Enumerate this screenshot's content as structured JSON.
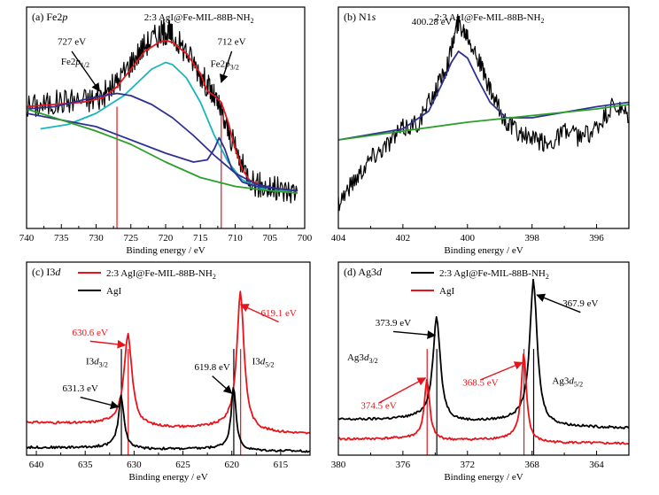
{
  "chart_data": [
    {
      "id": "a",
      "type": "line",
      "panel_label": "(a) Fe2p",
      "sample_label": "2:3 AgI@Fe-MIL-88B-NH2",
      "xlabel": "Binding energy / eV",
      "xlim": [
        740,
        700
      ],
      "xticks": [
        740,
        735,
        730,
        725,
        720,
        715,
        710,
        705,
        700
      ],
      "ylim": [
        0,
        1
      ],
      "y_tick_labels": false,
      "series": [
        {
          "role": "raw",
          "color": "#000000",
          "x": [
            740,
            737,
            734,
            731,
            729,
            727,
            725,
            723,
            721,
            720,
            719,
            717,
            715,
            713.5,
            712.5,
            711,
            709,
            707,
            705,
            703,
            701
          ],
          "y": [
            0.55,
            0.56,
            0.58,
            0.58,
            0.6,
            0.66,
            0.75,
            0.83,
            0.88,
            0.89,
            0.87,
            0.8,
            0.7,
            0.62,
            0.56,
            0.44,
            0.28,
            0.2,
            0.18,
            0.17,
            0.17
          ]
        },
        {
          "role": "envelope",
          "color": "#e8141b",
          "x": [
            740,
            736,
            732,
            729,
            727,
            725,
            723,
            721,
            720,
            719,
            717,
            715,
            714,
            713,
            712,
            711,
            710,
            709,
            708,
            706,
            704,
            701
          ],
          "y": [
            0.55,
            0.56,
            0.57,
            0.59,
            0.64,
            0.72,
            0.8,
            0.84,
            0.85,
            0.84,
            0.79,
            0.7,
            0.62,
            0.6,
            0.57,
            0.48,
            0.36,
            0.27,
            0.22,
            0.19,
            0.18,
            0.17
          ]
        },
        {
          "role": "component",
          "color": "#19b5bf",
          "x": [
            738,
            734,
            730,
            728,
            726,
            724,
            722,
            720,
            719,
            717,
            715,
            713,
            711,
            709,
            707,
            705,
            702
          ],
          "y": [
            0.45,
            0.47,
            0.52,
            0.56,
            0.6,
            0.66,
            0.72,
            0.75,
            0.74,
            0.68,
            0.57,
            0.42,
            0.3,
            0.22,
            0.19,
            0.17,
            0.17
          ]
        },
        {
          "role": "component",
          "color": "#2e3192",
          "x": [
            740,
            736,
            732,
            729,
            727,
            725,
            722,
            719,
            716,
            713,
            710,
            707,
            704,
            701
          ],
          "y": [
            0.54,
            0.55,
            0.58,
            0.6,
            0.61,
            0.6,
            0.56,
            0.5,
            0.42,
            0.33,
            0.25,
            0.2,
            0.18,
            0.17
          ]
        },
        {
          "role": "component",
          "color": "#2e3192",
          "x": [
            740,
            730,
            720,
            716,
            714,
            713,
            712.3,
            711.5,
            710.5,
            709,
            707,
            701
          ],
          "y": [
            0.52,
            0.46,
            0.34,
            0.3,
            0.31,
            0.36,
            0.41,
            0.36,
            0.27,
            0.21,
            0.19,
            0.17
          ]
        },
        {
          "role": "background",
          "color": "#2aa02a",
          "x": [
            740,
            735,
            730,
            725,
            720,
            715,
            710,
            705,
            701
          ],
          "y": [
            0.54,
            0.49,
            0.44,
            0.38,
            0.3,
            0.23,
            0.19,
            0.17,
            0.16
          ]
        }
      ],
      "noise_on_series": 0,
      "marker_lines": [
        {
          "x": 727,
          "color": "#e8141b"
        },
        {
          "x": 712,
          "color": "#e8141b"
        }
      ],
      "annotations": [
        {
          "text": "727 eV",
          "x": 733.5,
          "y": 0.83,
          "color": "#000000"
        },
        {
          "text": "712 eV",
          "x": 710.5,
          "y": 0.83,
          "color": "#000000"
        }
      ],
      "labels": [
        {
          "main": "Fe2p",
          "sub": "1/2",
          "x": 733.0,
          "y": 0.74
        },
        {
          "main": "Fe2p",
          "sub": "3/2",
          "x": 711.5,
          "y": 0.73
        }
      ]
    },
    {
      "id": "b",
      "type": "line",
      "panel_label": "(b) N1s",
      "sample_label": "2:3 AgI@Fe-MIL-88B-NH2",
      "xlabel": "Binding energy / eV",
      "xlim": [
        404,
        395
      ],
      "xticks": [
        404,
        402,
        400,
        398,
        396
      ],
      "ylim": [
        0,
        1
      ],
      "y_tick_labels": false,
      "series": [
        {
          "role": "raw",
          "color": "#000000",
          "x": [
            404,
            403.5,
            403,
            402.5,
            402,
            401.5,
            401,
            400.6,
            400.3,
            400.0,
            399.7,
            399.3,
            398.9,
            398.5,
            398,
            397.5,
            397,
            396.5,
            396,
            395.5,
            395
          ],
          "y": [
            0.12,
            0.22,
            0.32,
            0.38,
            0.45,
            0.48,
            0.62,
            0.75,
            0.93,
            0.88,
            0.78,
            0.62,
            0.5,
            0.44,
            0.4,
            0.38,
            0.44,
            0.41,
            0.45,
            0.55,
            0.5
          ]
        },
        {
          "role": "fit",
          "color": "#2e3192",
          "x": [
            404,
            402,
            401.2,
            400.8,
            400.5,
            400.28,
            400.0,
            399.7,
            399.3,
            398.8,
            398,
            396,
            395
          ],
          "y": [
            0.4,
            0.45,
            0.53,
            0.65,
            0.75,
            0.8,
            0.77,
            0.68,
            0.57,
            0.5,
            0.5,
            0.55,
            0.57
          ]
        },
        {
          "role": "background",
          "color": "#2aa02a",
          "x": [
            404,
            402,
            400,
            398,
            396,
            395
          ],
          "y": [
            0.4,
            0.44,
            0.48,
            0.51,
            0.54,
            0.56
          ]
        }
      ],
      "annotations": [
        {
          "text": "400.28 eV",
          "x": 401.1,
          "y": 0.92,
          "color": "#000000"
        }
      ]
    },
    {
      "id": "c",
      "type": "line",
      "panel_label": "(c) I3d",
      "xlabel": "Binding energy / eV",
      "xlim": [
        641,
        612
      ],
      "xticks": [
        640,
        635,
        630,
        625,
        620,
        615
      ],
      "ylim": [
        0,
        1
      ],
      "y_tick_labels": false,
      "legend": [
        {
          "name": "2:3 AgI@Fe-MIL-88B-NH2",
          "color": "#e8141b"
        },
        {
          "name": "AgI",
          "color": "#000000"
        }
      ],
      "series": [
        {
          "name": "2:3 AgI@Fe-MIL-88B-NH2",
          "color": "#e8141b",
          "peaks": [
            [
              630.6,
              0.45,
              0.5
            ],
            [
              619.1,
              0.69,
              0.45
            ]
          ],
          "baseline": [
            0.17,
            0.11
          ]
        },
        {
          "name": "AgI",
          "color": "#000000",
          "peaks": [
            [
              631.3,
              0.26,
              0.35
            ],
            [
              619.8,
              0.32,
              0.3
            ]
          ],
          "baseline": [
            0.04,
            0.02
          ]
        }
      ],
      "marker_lines": [
        {
          "x": 630.6,
          "color": "#e8141b"
        },
        {
          "x": 619.1,
          "color": "#e8141b"
        },
        {
          "x": 631.3,
          "color": "#000000"
        },
        {
          "x": 619.8,
          "color": "#000000"
        }
      ],
      "annotations": [
        {
          "text": "630.6 eV",
          "x": 634.5,
          "y": 0.62,
          "color": "#e8141b"
        },
        {
          "text": "619.1 eV",
          "x": 615.2,
          "y": 0.72,
          "color": "#e8141b"
        },
        {
          "text": "619.8 eV",
          "x": 622.0,
          "y": 0.44,
          "color": "#000000"
        },
        {
          "text": "631.3 eV",
          "x": 635.5,
          "y": 0.33,
          "color": "#000000"
        }
      ],
      "labels": [
        {
          "main": "I3d",
          "sub": "3/2",
          "x": 633.8,
          "y": 0.47
        },
        {
          "main": "I3d",
          "sub": "5/2",
          "x": 616.8,
          "y": 0.47
        }
      ]
    },
    {
      "id": "d",
      "type": "line",
      "panel_label": "(d) Ag3d",
      "xlabel": "Binding energy / eV",
      "xlim": [
        380,
        362
      ],
      "xticks": [
        380,
        376,
        372,
        368,
        364
      ],
      "ylim": [
        0,
        1
      ],
      "y_tick_labels": false,
      "legend": [
        {
          "name": "2:3 AgI@Fe-MIL-88B-NH2",
          "color": "#000000"
        },
        {
          "name": "AgI",
          "color": "#e8141b"
        }
      ],
      "series": [
        {
          "name": "2:3 AgI@Fe-MIL-88B-NH2",
          "color": "#000000",
          "peaks": [
            [
              373.9,
              0.52,
              0.28
            ],
            [
              367.9,
              0.72,
              0.28
            ]
          ],
          "baseline": [
            0.18,
            0.14
          ]
        },
        {
          "name": "AgI",
          "color": "#e8141b",
          "peaks": [
            [
              374.5,
              0.3,
              0.2
            ],
            [
              368.5,
              0.44,
              0.2
            ]
          ],
          "baseline": [
            0.08,
            0.06
          ]
        }
      ],
      "marker_lines": [
        {
          "x": 374.5,
          "color": "#e8141b"
        },
        {
          "x": 368.5,
          "color": "#e8141b"
        },
        {
          "x": 373.9,
          "color": "#000000"
        },
        {
          "x": 367.9,
          "color": "#000000"
        }
      ],
      "annotations": [
        {
          "text": "373.9 eV",
          "x": 376.6,
          "y": 0.67,
          "color": "#000000"
        },
        {
          "text": "367.9 eV",
          "x": 365.0,
          "y": 0.77,
          "color": "#000000"
        },
        {
          "text": "374.5 eV",
          "x": 377.5,
          "y": 0.24,
          "color": "#e8141b"
        },
        {
          "text": "368.5 eV",
          "x": 371.2,
          "y": 0.36,
          "color": "#e8141b"
        }
      ],
      "labels": [
        {
          "main": "Ag3d",
          "sub": "3/2",
          "x": 378.5,
          "y": 0.49
        },
        {
          "main": "Ag3d",
          "sub": "5/2",
          "x": 365.8,
          "y": 0.37
        }
      ]
    }
  ]
}
